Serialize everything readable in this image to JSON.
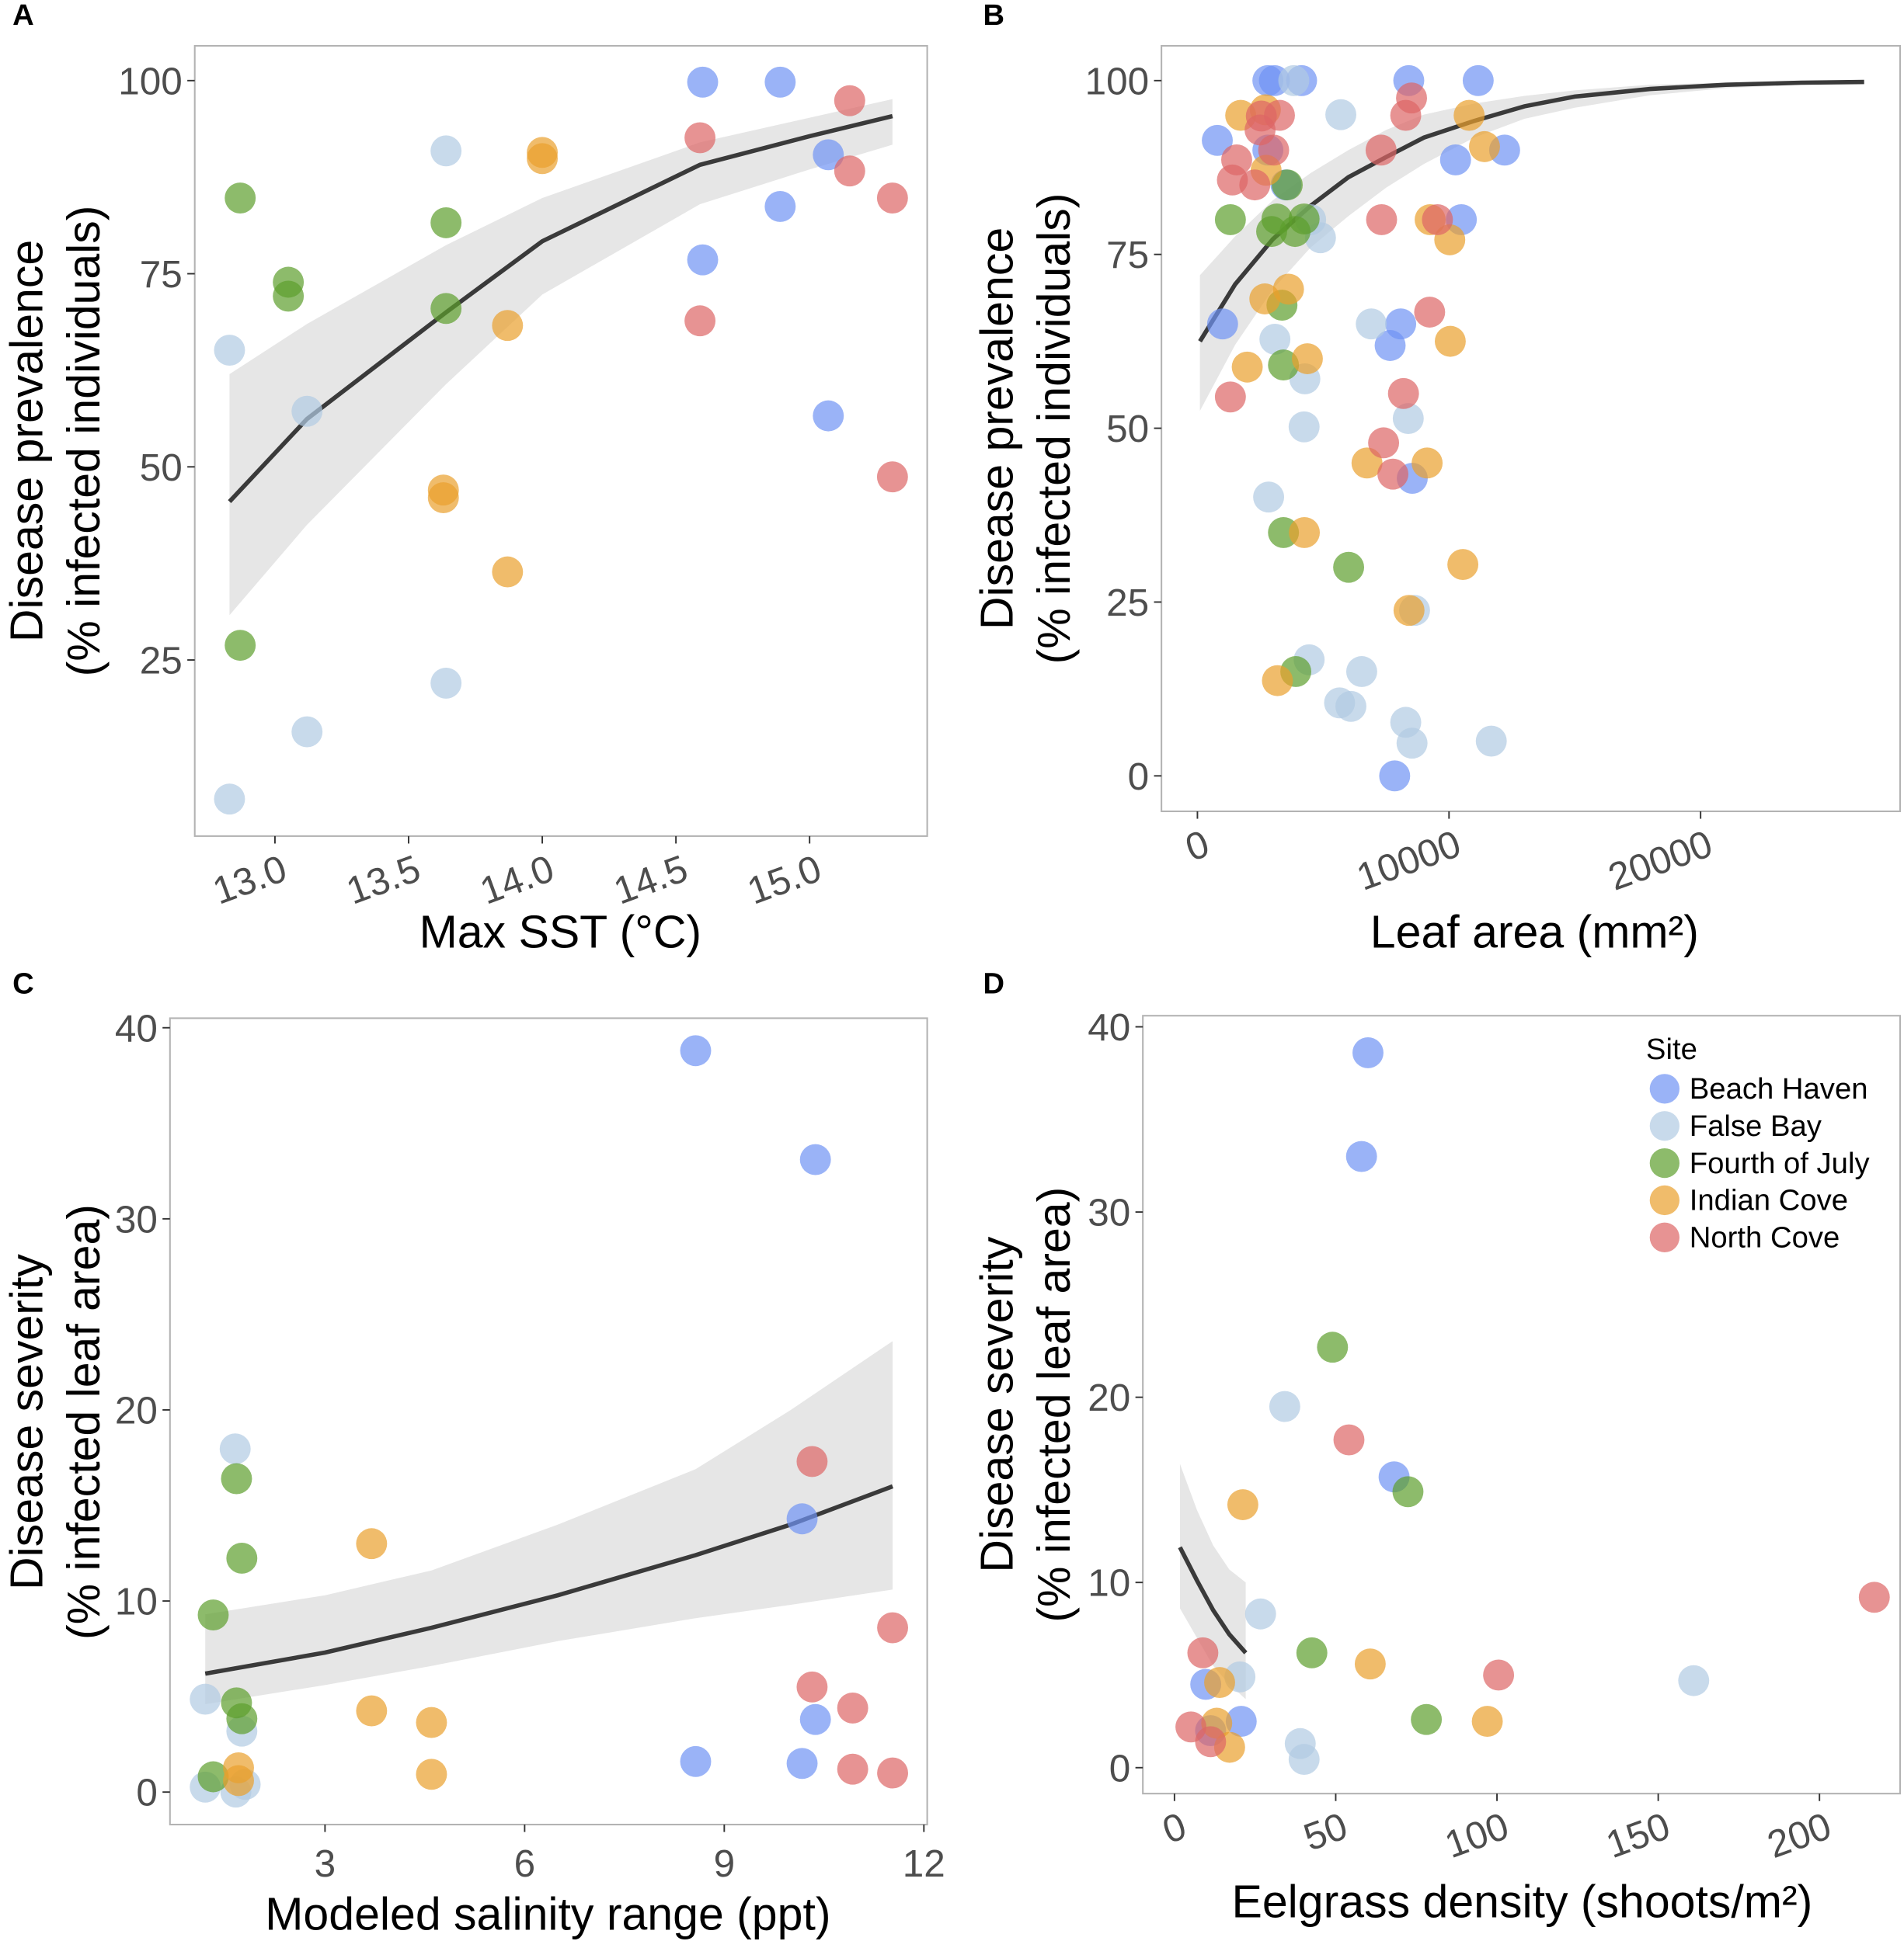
{
  "sites": [
    {
      "name": "Beach Haven",
      "color": "#6f93f3"
    },
    {
      "name": "False Bay",
      "color": "#b0cbe2"
    },
    {
      "name": "Fourth of July",
      "color": "#5d9e2c"
    },
    {
      "name": "Indian Cove",
      "color": "#e99f2c"
    },
    {
      "name": "North Cove",
      "color": "#dd6565"
    }
  ],
  "legend": {
    "title": "Site",
    "placement": "top-right of panel D"
  },
  "chart_data": [
    {
      "panel": "A",
      "type": "scatter",
      "xlabel": "Max SST (°C)",
      "ylabel": [
        "Disease prevalence",
        "(% infected individuals)"
      ],
      "xlim": [
        12.7,
        15.44
      ],
      "ylim": [
        2.2,
        104.5
      ],
      "xticks": [
        "13.0",
        "13.5",
        "14.0",
        "14.5",
        "15.0"
      ],
      "yticks": [
        "25",
        "50",
        "75",
        "100"
      ],
      "grid": false,
      "series": [
        {
          "name": "Beach Haven",
          "x": [
            14.6,
            14.6,
            14.89,
            14.89,
            15.07,
            15.07
          ],
          "y": [
            99.8,
            76.8,
            99.8,
            83.7,
            90.4,
            56.6
          ]
        },
        {
          "name": "False Bay",
          "x": [
            12.83,
            12.83,
            13.12,
            13.12,
            13.64,
            13.64
          ],
          "y": [
            65.1,
            7.0,
            57.2,
            15.7,
            90.9,
            22.0
          ]
        },
        {
          "name": "Fourth of July",
          "x": [
            12.87,
            12.87,
            13.05,
            13.05,
            13.64,
            13.64
          ],
          "y": [
            84.8,
            26.9,
            73.9,
            72.1,
            81.6,
            70.5
          ]
        },
        {
          "name": "Indian Cove",
          "x": [
            13.63,
            13.63,
            13.87,
            13.87,
            14.0,
            14.0
          ],
          "y": [
            47.0,
            46.0,
            68.3,
            36.4,
            90.7,
            89.9
          ]
        },
        {
          "name": "North Cove",
          "x": [
            14.59,
            14.59,
            15.15,
            15.15,
            15.31,
            15.31
          ],
          "y": [
            92.6,
            68.9,
            97.4,
            88.3,
            84.8,
            48.7
          ]
        }
      ],
      "fit": {
        "x": [
          12.83,
          13.12,
          13.64,
          14.0,
          14.59,
          15.0,
          15.31
        ],
        "y": [
          45.5,
          56.2,
          70.0,
          79.2,
          89.1,
          92.8,
          95.4
        ],
        "lower": [
          30.8,
          42.5,
          60.7,
          72.3,
          84.0,
          88.5,
          91.7
        ],
        "upper": [
          62.0,
          68.5,
          78.7,
          84.8,
          92.0,
          95.2,
          97.6
        ]
      }
    },
    {
      "panel": "B",
      "type": "scatter",
      "xlabel": "Leaf area (mm²)",
      "ylabel": [
        "Disease prevalence",
        "(% infected individuals)"
      ],
      "xlim": [
        -1430,
        27930
      ],
      "ylim": [
        -5.1,
        105
      ],
      "xticks": [
        "0",
        "10000",
        "20000"
      ],
      "yticks": [
        "0",
        "25",
        "50",
        "75",
        "100"
      ],
      "grid": false,
      "series": [
        {
          "name": "Beach Haven",
          "x": [
            2800,
            3060,
            4140,
            8400,
            11160,
            790,
            2800,
            10260,
            12210,
            3520,
            10490,
            1000,
            8080,
            7660,
            8540,
            7840
          ],
          "y": [
            100,
            100,
            100,
            100,
            100,
            91.4,
            90,
            88.6,
            90,
            85,
            80,
            65,
            65,
            61.9,
            42.8,
            0
          ]
        },
        {
          "name": "False Bay",
          "x": [
            3830,
            5700,
            4500,
            4890,
            3080,
            6910,
            4270,
            8380,
            4240,
            2830,
            8630,
            4440,
            6530,
            5650,
            6100,
            8280,
            8530,
            11680
          ],
          "y": [
            100,
            95.1,
            80,
            77.4,
            62.8,
            65,
            57.1,
            51.4,
            50.2,
            40.1,
            23.8,
            16.7,
            15,
            10.5,
            10,
            7.7,
            4.7,
            5
          ]
        },
        {
          "name": "Fourth of July",
          "x": [
            3570,
            1310,
            3160,
            2950,
            3880,
            4240,
            3360,
            3420,
            3420,
            6010,
            3910
          ],
          "y": [
            85,
            80,
            80.1,
            78.3,
            78.3,
            80.1,
            67.7,
            59.1,
            35,
            30,
            15
          ]
        },
        {
          "name": "Indian Cove",
          "x": [
            1720,
            2700,
            10800,
            11410,
            2730,
            9250,
            10030,
            2680,
            3620,
            10050,
            1980,
            4370,
            6740,
            9130,
            4250,
            10550,
            8410,
            3180
          ],
          "y": [
            95,
            95.8,
            95,
            90.5,
            87.1,
            80,
            77.1,
            68.6,
            70,
            62.5,
            58.8,
            60,
            45,
            45,
            35,
            30.4,
            23.8,
            13.7
          ]
        },
        {
          "name": "North Cove",
          "x": [
            8510,
            8280,
            2540,
            3260,
            2490,
            3030,
            7300,
            1560,
            1390,
            2280,
            7320,
            9540,
            9230,
            1310,
            8190,
            7400,
            7770
          ],
          "y": [
            97.5,
            95,
            94.9,
            95,
            92.9,
            90,
            90,
            88.6,
            85.7,
            85,
            80,
            80,
            66.7,
            54.5,
            55,
            47.9,
            43.4
          ]
        }
      ],
      "fit": {
        "x": [
          100,
          1500,
          3000,
          4500,
          6000,
          7500,
          9000,
          11000,
          13000,
          15000,
          18000,
          21000,
          24000,
          26500
        ],
        "y": [
          62.5,
          70.7,
          77.2,
          82.0,
          86.1,
          89.0,
          91.8,
          94.2,
          96.3,
          97.7,
          98.8,
          99.4,
          99.7,
          99.8
        ],
        "lower": [
          52.5,
          62.0,
          70.0,
          76.0,
          80.5,
          84.6,
          88.0,
          91.8,
          94.5,
          96.1,
          97.9,
          98.9,
          99.4,
          99.6
        ],
        "upper": [
          72.0,
          77.6,
          82.8,
          86.7,
          90.0,
          92.9,
          95.1,
          96.7,
          97.8,
          98.6,
          99.4,
          99.7,
          99.9,
          99.95
        ]
      }
    },
    {
      "panel": "C",
      "type": "scatter",
      "xlabel": "Modeled salinity range (ppt)",
      "ylabel": [
        "Disease severity",
        "(% infected leaf area)"
      ],
      "xlim": [
        0.67,
        12.05
      ],
      "ylim": [
        -1.7,
        40.5
      ],
      "xticks": [
        "3",
        "6",
        "9",
        "12"
      ],
      "yticks": [
        "0",
        "10",
        "20",
        "30",
        "40"
      ],
      "grid": false,
      "series": [
        {
          "name": "Beach Haven",
          "x": [
            8.57,
            10.37,
            10.17,
            10.37,
            8.57,
            10.17
          ],
          "y": [
            38.8,
            33.1,
            14.3,
            3.8,
            1.6,
            1.5
          ]
        },
        {
          "name": "False Bay",
          "x": [
            1.65,
            1.2,
            1.75,
            1.2,
            1.66,
            1.8
          ],
          "y": [
            17.96,
            4.86,
            3.19,
            0.26,
            0.0,
            0.4
          ]
        },
        {
          "name": "Fourth of July",
          "x": [
            1.67,
            1.75,
            1.32,
            1.67,
            1.75,
            1.32
          ],
          "y": [
            16.4,
            12.24,
            9.27,
            4.67,
            3.84,
            0.8
          ]
        },
        {
          "name": "Indian Cove",
          "x": [
            3.7,
            3.7,
            4.6,
            4.6,
            1.7,
            1.7
          ],
          "y": [
            13.0,
            4.25,
            3.64,
            0.93,
            1.27,
            0.6
          ]
        },
        {
          "name": "North Cove",
          "x": [
            10.32,
            11.53,
            10.32,
            10.93,
            10.93,
            11.53
          ],
          "y": [
            17.3,
            8.6,
            5.5,
            4.4,
            1.2,
            1.0
          ]
        }
      ],
      "fit": {
        "x": [
          1.2,
          3.0,
          4.6,
          6.5,
          8.57,
          10.0,
          11.53
        ],
        "y": [
          6.2,
          7.3,
          8.6,
          10.3,
          12.4,
          14.0,
          16.0
        ],
        "lower": [
          4.6,
          5.6,
          6.6,
          7.9,
          9.1,
          9.8,
          10.6
        ],
        "upper": [
          9.3,
          10.3,
          11.6,
          14.0,
          16.9,
          20.0,
          23.6
        ]
      }
    },
    {
      "panel": "D",
      "type": "scatter",
      "xlabel": "Eelgrass density (shoots/m²)",
      "ylabel": [
        "Disease severity",
        "(% infected leaf area)"
      ],
      "xlim": [
        -9.8,
        225
      ],
      "ylim": [
        -1.4,
        40.6
      ],
      "xticks": [
        "0",
        "50",
        "100",
        "150",
        "200"
      ],
      "yticks": [
        "0",
        "10",
        "20",
        "30",
        "40"
      ],
      "grid": false,
      "series": [
        {
          "name": "Beach Haven",
          "x": [
            60,
            58,
            68.1,
            9.7,
            20.7,
            11.2
          ],
          "y": [
            38.6,
            33.0,
            15.7,
            4.5,
            2.5,
            2.0
          ]
        },
        {
          "name": "False Bay",
          "x": [
            34.2,
            26.7,
            20.3,
            39.0,
            40.2,
            161
          ],
          "y": [
            19.5,
            8.3,
            4.9,
            1.3,
            0.45,
            4.7
          ]
        },
        {
          "name": "Fourth of July",
          "x": [
            49,
            72.4,
            42.6,
            78.1
          ],
          "y": [
            22.7,
            14.9,
            6.2,
            2.6
          ]
        },
        {
          "name": "Indian Cove",
          "x": [
            21.2,
            60.7,
            14.0,
            13.1,
            17.1,
            97
          ],
          "y": [
            14.2,
            5.6,
            4.6,
            2.4,
            1.1,
            2.5
          ]
        },
        {
          "name": "North Cove",
          "x": [
            54.1,
            8.8,
            5.1,
            11.2,
            100.5,
            217
          ],
          "y": [
            17.7,
            6.2,
            2.2,
            1.4,
            5.0,
            9.2
          ]
        }
      ],
      "fit": {
        "x": [
          1.7,
          7,
          12,
          17,
          22.1
        ],
        "y": [
          11.9,
          10.1,
          8.5,
          7.2,
          6.2
        ],
        "lower": [
          8.6,
          7.0,
          5.5,
          4.5,
          3.7
        ],
        "upper": [
          16.4,
          13.9,
          12.0,
          10.7,
          10.0
        ]
      }
    }
  ]
}
